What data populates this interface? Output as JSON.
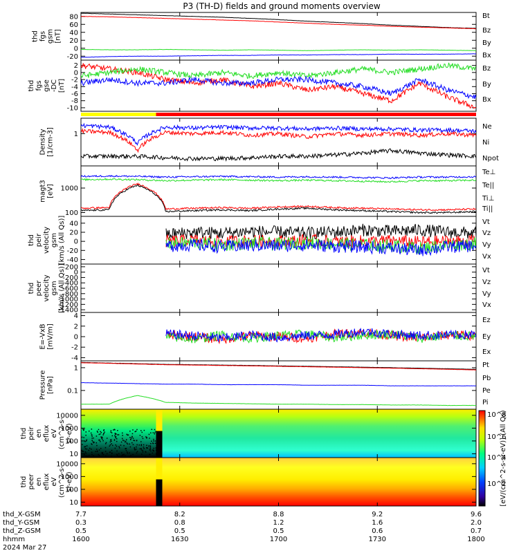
{
  "title": "P3 (TH-D) fields and ground moments overview",
  "colors": {
    "black": "#000000",
    "red": "#ff0000",
    "green": "#22dd22",
    "blue": "#0000ff",
    "yellow": "#ffff00"
  },
  "chart_data": [
    {
      "type": "line",
      "id": "fgs_gsm",
      "ylabel": [
        "thd",
        "fgs",
        "gsm",
        "[nT]"
      ],
      "ylim": [
        -30,
        90
      ],
      "yticks": [
        80,
        60,
        40,
        20,
        0,
        -20
      ],
      "series": [
        {
          "name": "Bt",
          "color": "black",
          "values": [
            88,
            86,
            84,
            82,
            80,
            78,
            75,
            72,
            68,
            65,
            62,
            58,
            55,
            52,
            50
          ]
        },
        {
          "name": "Bz",
          "color": "red",
          "values": [
            80,
            79,
            77,
            75,
            73,
            71,
            69,
            66,
            63,
            60,
            58,
            55,
            53,
            51,
            49
          ]
        },
        {
          "name": "By",
          "color": "green",
          "values": [
            -3,
            -4,
            -4,
            -3,
            -4,
            -5,
            -4,
            -5,
            -6,
            -5,
            -4,
            -5,
            -4,
            -5,
            -6
          ]
        },
        {
          "name": "Bx",
          "color": "blue",
          "values": [
            -23,
            -21,
            -20,
            -20,
            -19,
            -18,
            -18,
            -17,
            -17,
            -16,
            -16,
            -15,
            -15,
            -15,
            -14
          ]
        }
      ]
    },
    {
      "type": "line",
      "id": "fgs_gse",
      "ylabel": [
        "thd",
        "fgs",
        "gse",
        "-DC",
        "[nT]"
      ],
      "ylim": [
        -11,
        3.5
      ],
      "yticks": [
        2,
        0,
        -2,
        -4,
        -6,
        -8,
        -10
      ],
      "series": [
        {
          "name": "Bz",
          "color": "red",
          "values": [
            2,
            1,
            0,
            -2,
            -3,
            -2,
            -4,
            -3,
            -5,
            -4,
            -6,
            -8,
            -3,
            -7,
            -10
          ]
        },
        {
          "name": "By",
          "color": "green",
          "values": [
            -1,
            0,
            1,
            0,
            -1,
            0,
            -1,
            0,
            -1,
            0,
            1,
            0,
            1,
            2,
            1
          ]
        },
        {
          "name": "Bx",
          "color": "blue",
          "values": [
            -3,
            -2,
            -3,
            -3,
            -2,
            -3,
            -3,
            -2,
            -2,
            -3,
            -4,
            -6,
            -2,
            -5,
            -7
          ]
        }
      ]
    },
    {
      "type": "line",
      "id": "density",
      "ylabel": [
        "Density",
        "[1/cm-3]"
      ],
      "ylim": [
        0.1,
        3
      ],
      "log": true,
      "yticks": [
        1
      ],
      "series": [
        {
          "name": "Ne",
          "color": "red",
          "values": [
            1.2,
            1.1,
            0.3,
            1.1,
            1.0,
            1.1,
            0.9,
            1.0,
            0.8,
            1.0,
            0.9,
            1.0,
            0.9,
            1.0,
            0.9
          ]
        },
        {
          "name": "Ni",
          "color": "black",
          "values": [
            0.2,
            0.2,
            0.2,
            0.18,
            0.17,
            0.17,
            0.18,
            0.2,
            0.2,
            0.22,
            0.25,
            0.3,
            0.25,
            0.22,
            0.2
          ]
        },
        {
          "name": "Npot",
          "color": "blue",
          "values": [
            1.8,
            1.6,
            0.5,
            1.6,
            1.5,
            1.6,
            1.5,
            1.5,
            1.4,
            1.5,
            1.4,
            1.4,
            1.3,
            1.3,
            1.2
          ]
        }
      ]
    },
    {
      "type": "line",
      "id": "temperature",
      "ylabel": [
        "magt3",
        "[eV]"
      ],
      "ylim": [
        70,
        8000
      ],
      "log": true,
      "yticks": [
        1000,
        100
      ],
      "series": [
        {
          "name": "Te⊥",
          "color": "red",
          "values": [
            150,
            160,
            1500,
            140,
            150,
            160,
            150,
            170,
            180,
            160,
            150,
            140,
            130,
            130,
            140
          ]
        },
        {
          "name": "Te||",
          "color": "black",
          "values": [
            120,
            130,
            1300,
            110,
            120,
            130,
            120,
            140,
            150,
            130,
            120,
            110,
            100,
            100,
            110
          ]
        },
        {
          "name": "Ti⊥",
          "color": "blue",
          "values": [
            3000,
            3100,
            3000,
            2800,
            2900,
            3000,
            2900,
            2800,
            2900,
            2800,
            2700,
            2600,
            2800,
            2800,
            2900
          ]
        },
        {
          "name": "Ti||",
          "color": "green",
          "values": [
            2200,
            2300,
            2200,
            2000,
            2100,
            2200,
            2100,
            2000,
            2100,
            2000,
            1900,
            1800,
            2000,
            2000,
            2100
          ]
        }
      ]
    },
    {
      "type": "line",
      "id": "peir_velocity",
      "ylabel": [
        "thd",
        "peir",
        "velocity",
        "gsm",
        "[km/s (All Qs)]"
      ],
      "ylim": [
        -50,
        55
      ],
      "yticks": [
        40,
        20,
        0,
        -20,
        -40
      ],
      "series": [
        {
          "name": "Vt",
          "color": "black",
          "values": [
            null,
            null,
            null,
            15,
            20,
            18,
            22,
            20,
            18,
            20,
            25,
            22,
            25,
            20,
            18
          ]
        },
        {
          "name": "Vz",
          "color": "red",
          "values": [
            null,
            null,
            null,
            0,
            2,
            -1,
            1,
            0,
            2,
            -1,
            0,
            1,
            -2,
            0,
            1
          ]
        },
        {
          "name": "Vy",
          "color": "green",
          "values": [
            null,
            null,
            null,
            -5,
            -3,
            -8,
            -4,
            -6,
            -3,
            -5,
            -8,
            -10,
            -15,
            -8,
            -5
          ]
        },
        {
          "name": "Vx",
          "color": "blue",
          "values": [
            null,
            null,
            null,
            -10,
            -8,
            -12,
            -9,
            -10,
            -8,
            -11,
            -12,
            -15,
            -20,
            -12,
            -10
          ]
        }
      ]
    },
    {
      "type": "line",
      "id": "peer_velocity",
      "ylabel": [
        "thd",
        "peer",
        "velocity",
        "gsm",
        "[km/s (All Qs)]"
      ],
      "ylim": [
        -1500,
        300
      ],
      "yticks": [
        200,
        0,
        -200,
        -400,
        -600,
        -800,
        -1000,
        -1200,
        -1400
      ],
      "series": [
        {
          "name": "Vt",
          "color": "black",
          "values": []
        },
        {
          "name": "Vz",
          "color": "red",
          "values": []
        },
        {
          "name": "Vy",
          "color": "green",
          "values": []
        },
        {
          "name": "Vx",
          "color": "blue",
          "values": []
        }
      ]
    },
    {
      "type": "line",
      "id": "efield",
      "ylabel": [
        "E=-VxB",
        "[mV/m]"
      ],
      "ylim": [
        -4.6,
        4.6
      ],
      "yticks": [
        4,
        2,
        0,
        -2,
        -4
      ],
      "series": [
        {
          "name": "Ez",
          "color": "red",
          "values": [
            null,
            null,
            null,
            0.3,
            0,
            -0.5,
            0.2,
            0,
            -0.3,
            0.5,
            0.8,
            0.2,
            -0.2,
            0.3,
            0.2
          ]
        },
        {
          "name": "Ey",
          "color": "green",
          "values": [
            null,
            null,
            null,
            0,
            -0.5,
            0.3,
            -0.3,
            0.2,
            0.5,
            -0.2,
            0.3,
            0.5,
            -0.3,
            0.2,
            0.1
          ]
        },
        {
          "name": "Ex",
          "color": "blue",
          "values": [
            null,
            null,
            null,
            0.5,
            0.2,
            -0.3,
            0.3,
            -0.2,
            0.2,
            0.4,
            1,
            0.5,
            0.2,
            0.3,
            0.4
          ]
        }
      ]
    },
    {
      "type": "line",
      "id": "pressure",
      "ylabel": [
        "Pressure",
        "[nPa]"
      ],
      "ylim": [
        0.015,
        2
      ],
      "log": true,
      "yticks": [
        1.0,
        0.1
      ],
      "series": [
        {
          "name": "Pt",
          "color": "black",
          "values": [
            1.7,
            1.6,
            1.5,
            1.4,
            1.35,
            1.3,
            1.25,
            1.2,
            1.15,
            1.1,
            1.05,
            1.0,
            0.95,
            0.9,
            0.85
          ]
        },
        {
          "name": "Pb",
          "color": "red",
          "values": [
            1.65,
            1.55,
            1.45,
            1.35,
            1.3,
            1.25,
            1.2,
            1.15,
            1.1,
            1.05,
            1.0,
            0.95,
            0.9,
            0.85,
            0.8
          ]
        },
        {
          "name": "Pe",
          "color": "blue",
          "values": [
            0.22,
            0.21,
            0.2,
            0.19,
            0.19,
            0.18,
            0.18,
            0.18,
            0.17,
            0.17,
            0.17,
            0.16,
            0.16,
            0.16,
            0.16
          ]
        },
        {
          "name": "Pi",
          "color": "green",
          "values": [
            0.025,
            0.025,
            0.06,
            0.03,
            0.028,
            0.027,
            0.026,
            0.025,
            0.025,
            0.024,
            0.024,
            0.023,
            0.023,
            0.022,
            0.022
          ]
        }
      ]
    },
    {
      "type": "heatmap",
      "id": "peir_en_eflux",
      "ylabel": [
        "thd",
        "peir",
        "en",
        "eflux",
        "eV",
        "(cm^2-s-",
        "sr-eV)"
      ],
      "ylim": [
        5,
        30000
      ],
      "log": true,
      "yticks": [
        10000,
        1000,
        100,
        10
      ]
    },
    {
      "type": "heatmap",
      "id": "peer_en_eflux",
      "ylabel": [
        "thd",
        "peer",
        "en",
        "eflux",
        "eV",
        "(cm^2-s-",
        "sr-eV)"
      ],
      "ylim": [
        5,
        30000
      ],
      "log": true,
      "yticks": [
        10000,
        1000,
        100,
        10
      ]
    },
    {
      "type": "colorbar",
      "label": "[eV/(cm^2-s-sr-eV)] (All Qs)",
      "ticks": [
        "10^8",
        "10^6",
        "10^4",
        "10^2"
      ]
    }
  ],
  "bar_segments": [
    {
      "from": 0,
      "to": 0.19,
      "color": "yellow"
    },
    {
      "from": 0.19,
      "to": 1,
      "color": "red"
    }
  ],
  "xaxis": {
    "rows": [
      {
        "label": "thd_X-GSM",
        "values": [
          "7.7",
          "8.2",
          "8.8",
          "9.2",
          "9.6"
        ]
      },
      {
        "label": "thd_Y-GSM",
        "values": [
          "0.3",
          "0.8",
          "1.2",
          "1.6",
          "2.0"
        ]
      },
      {
        "label": "thd_Z-GSM",
        "values": [
          "0.5",
          "0.5",
          "0.5",
          "0.6",
          "0.7"
        ]
      },
      {
        "label": "hhmm",
        "values": [
          "1600",
          "1630",
          "1700",
          "1730",
          "1800"
        ]
      }
    ],
    "date": "2024 Mar 27"
  }
}
